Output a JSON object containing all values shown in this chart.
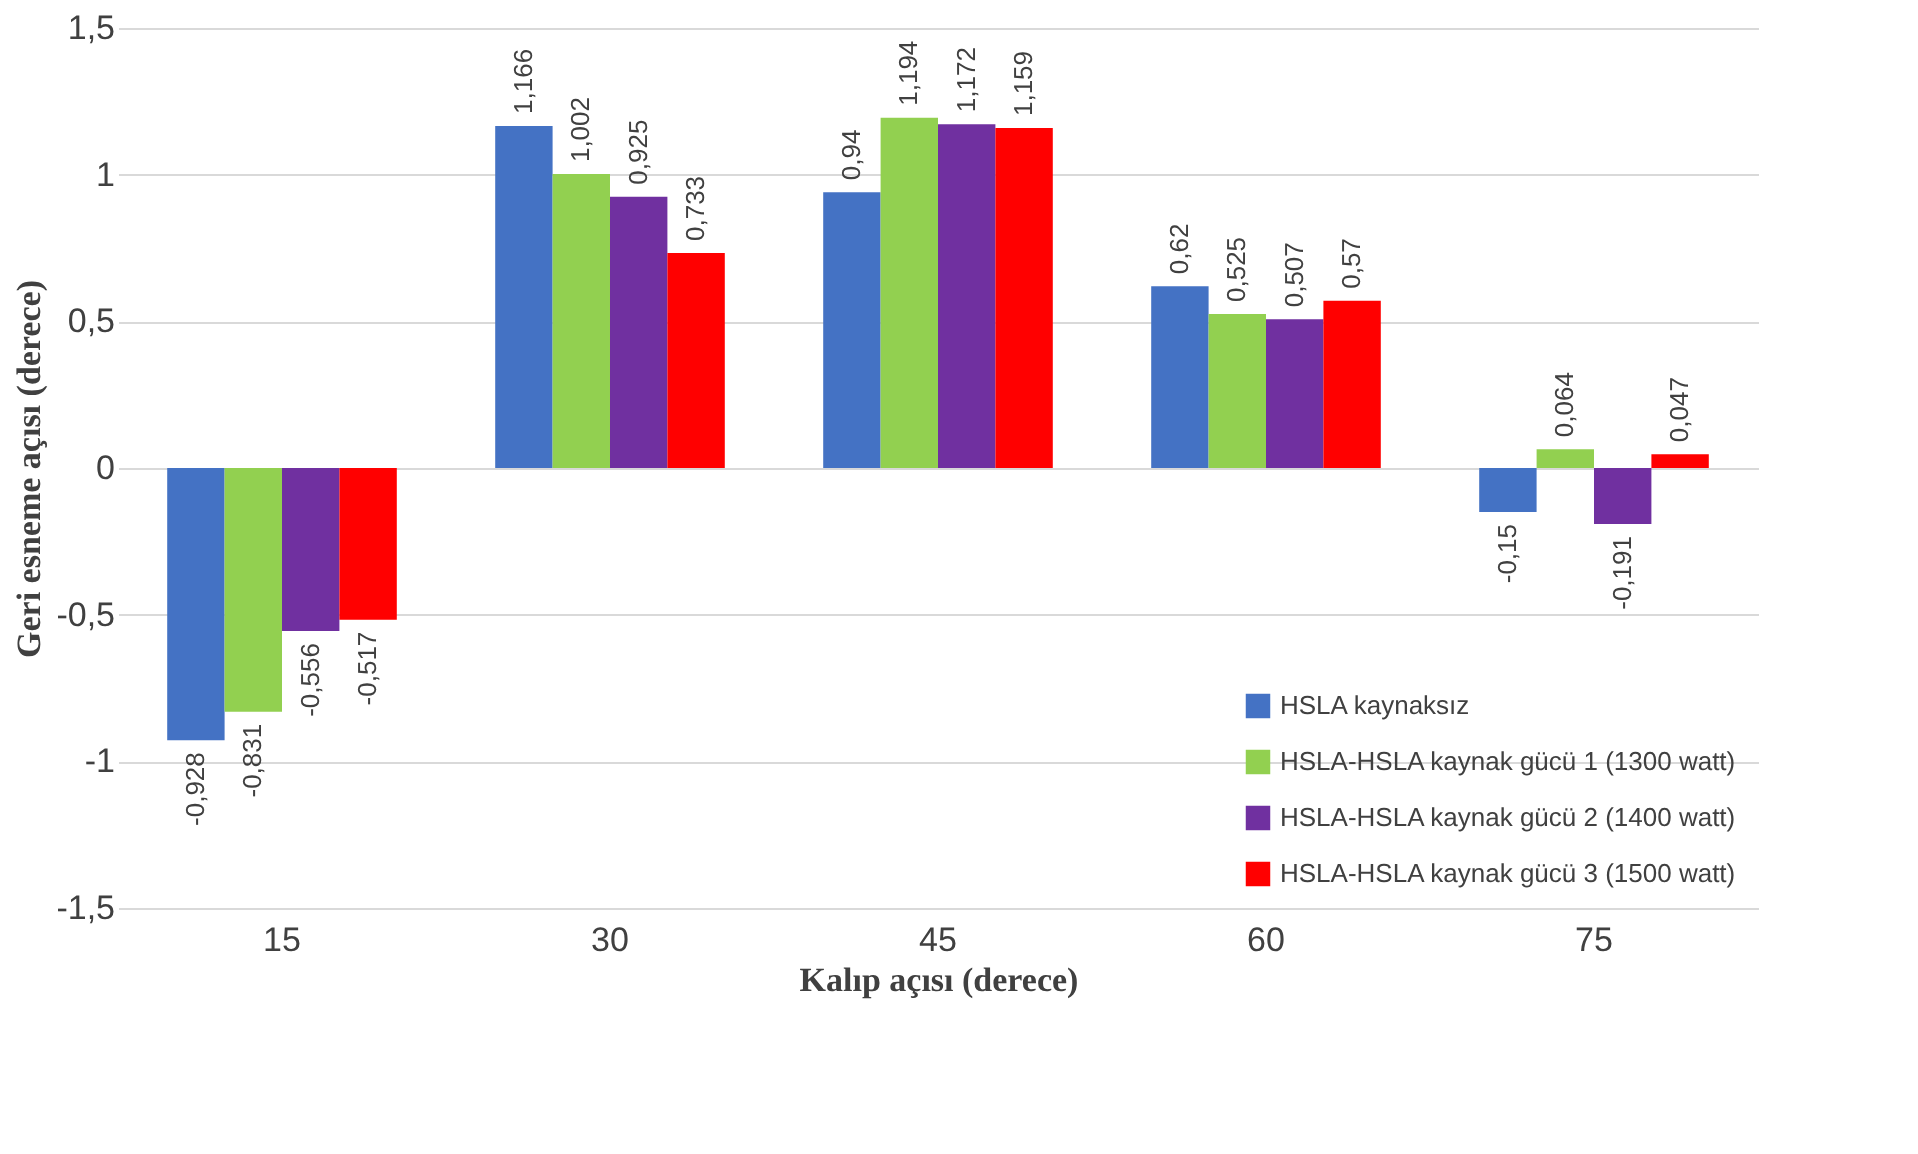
{
  "chart_data": {
    "type": "bar",
    "xlabel": "Kalıp açısı (derece)",
    "ylabel": "Geri esneme açısı (derece)",
    "categories": [
      "15",
      "30",
      "45",
      "60",
      "75"
    ],
    "series": [
      {
        "name": "HSLA kaynaksız",
        "color": "#4472c4",
        "values": [
          -0.928,
          1.166,
          0.94,
          0.62,
          -0.15
        ],
        "value_labels": [
          "-0,928",
          "1,166",
          "0,94",
          "0,62",
          "-0,15"
        ]
      },
      {
        "name": "HSLA-HSLA kaynak gücü 1 (1300 watt)",
        "color": "#92d050",
        "values": [
          -0.831,
          1.002,
          1.194,
          0.525,
          0.064
        ],
        "value_labels": [
          "-0,831",
          "1,002",
          "1,194",
          "0,525",
          "0,064"
        ]
      },
      {
        "name": "HSLA-HSLA kaynak gücü 2 (1400 watt)",
        "color": "#7030a0",
        "values": [
          -0.556,
          0.925,
          1.172,
          0.507,
          -0.191
        ],
        "value_labels": [
          "-0,556",
          "0,925",
          "1,172",
          "0,507",
          "-0,191"
        ]
      },
      {
        "name": "HSLA-HSLA kaynak gücü 3 (1500 watt)",
        "color": "#ff0000",
        "values": [
          -0.517,
          0.733,
          1.159,
          0.57,
          0.047
        ],
        "value_labels": [
          "-0,517",
          "0,733",
          "1,159",
          "0,57",
          "0,047"
        ]
      }
    ],
    "ylim": [
      -1.5,
      1.5
    ],
    "yticks": [
      {
        "value": -1.5,
        "label": "-1,5"
      },
      -1,
      {
        "value": -0.5,
        "label": "-0,5"
      },
      0,
      {
        "value": 0.5,
        "label": "0,5"
      },
      1,
      {
        "value": 1.5,
        "label": "1,5"
      }
    ],
    "grid": "y",
    "legend": "bottom right"
  }
}
